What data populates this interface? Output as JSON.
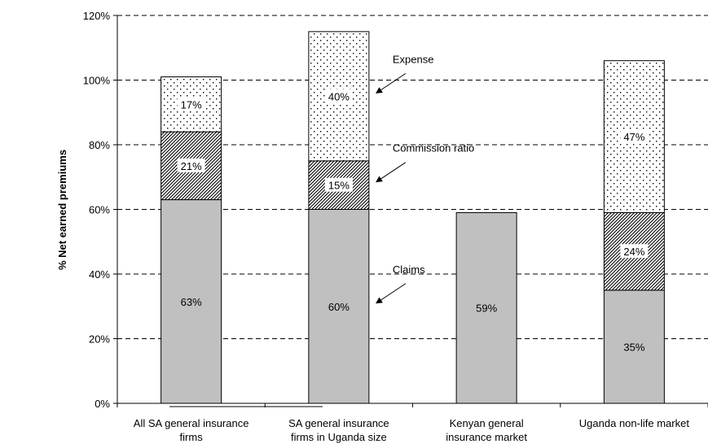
{
  "chart_data": {
    "type": "bar",
    "stacked": true,
    "title": "",
    "xlabel": "",
    "ylabel": "% Net earned premiums",
    "ylim": [
      0,
      120
    ],
    "yticks": [
      "0%",
      "20%",
      "40%",
      "60%",
      "80%",
      "100%",
      "120%"
    ],
    "grid": "horizontal dashed",
    "categories": [
      [
        "All SA general insurance",
        "firms"
      ],
      [
        "SA general insurance",
        "firms in Uganda size"
      ],
      [
        "Kenyan general",
        "insurance market"
      ],
      [
        "Uganda non-life market"
      ]
    ],
    "series": [
      {
        "name": "Claims",
        "values": [
          63,
          60,
          59,
          35
        ],
        "labels": [
          "63%",
          "60%",
          "59%",
          "35%"
        ],
        "fill": "#c0c0c0",
        "pattern": "solid"
      },
      {
        "name": "Commission ratio",
        "values": [
          21,
          15,
          null,
          24
        ],
        "labels": [
          "21%",
          "15%",
          "",
          "24%"
        ],
        "fill": "#ffffff",
        "pattern": "diagonal-hatch"
      },
      {
        "name": "Expense",
        "values": [
          17,
          40,
          null,
          47
        ],
        "labels": [
          "17%",
          "40%",
          "",
          "47%"
        ],
        "fill": "#ffffff",
        "pattern": "dots"
      }
    ],
    "annotations": [
      {
        "text": "Expense",
        "series": "Expense"
      },
      {
        "text": "Commission ratio",
        "series": "Commission ratio"
      },
      {
        "text": "Claims",
        "series": "Claims"
      }
    ]
  }
}
